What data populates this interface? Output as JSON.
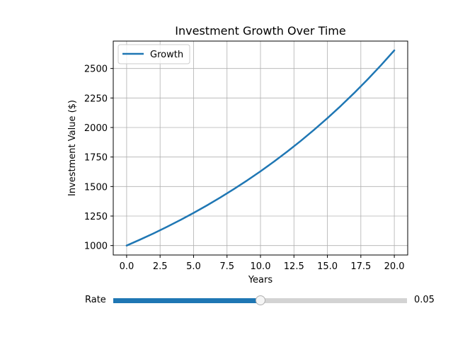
{
  "chart_data": {
    "type": "line",
    "title": "Investment Growth Over Time",
    "xlabel": "Years",
    "ylabel": "Investment Value ($)",
    "xlim": [
      -1,
      21
    ],
    "ylim": [
      920,
      2732
    ],
    "xticks": [
      0.0,
      2.5,
      5.0,
      7.5,
      10.0,
      12.5,
      15.0,
      17.5,
      20.0
    ],
    "xtick_labels": [
      "0.0",
      "2.5",
      "5.0",
      "7.5",
      "10.0",
      "12.5",
      "15.0",
      "17.5",
      "20.0"
    ],
    "yticks": [
      1000,
      1250,
      1500,
      1750,
      2000,
      2250,
      2500
    ],
    "ytick_labels": [
      "1000",
      "1250",
      "1500",
      "1750",
      "2000",
      "2250",
      "2500"
    ],
    "grid": true,
    "legend_position": "top-left",
    "series": [
      {
        "name": "Growth",
        "color": "#1f77b4",
        "x": [
          0,
          1,
          2,
          3,
          4,
          5,
          6,
          7,
          8,
          9,
          10,
          11,
          12,
          13,
          14,
          15,
          16,
          17,
          18,
          19,
          20
        ],
        "y": [
          1000,
          1050,
          1102.5,
          1157.6,
          1215.5,
          1276.3,
          1340.1,
          1407.1,
          1477.5,
          1551.3,
          1628.9,
          1710.3,
          1795.9,
          1885.6,
          1979.9,
          2078.9,
          2182.9,
          2292.0,
          2406.6,
          2527.0,
          2653.3
        ]
      }
    ]
  },
  "slider": {
    "label": "Rate",
    "value": 0.05,
    "value_text": "0.05",
    "min": 0.0,
    "max": 0.1,
    "fill_color": "#1f77b4"
  }
}
